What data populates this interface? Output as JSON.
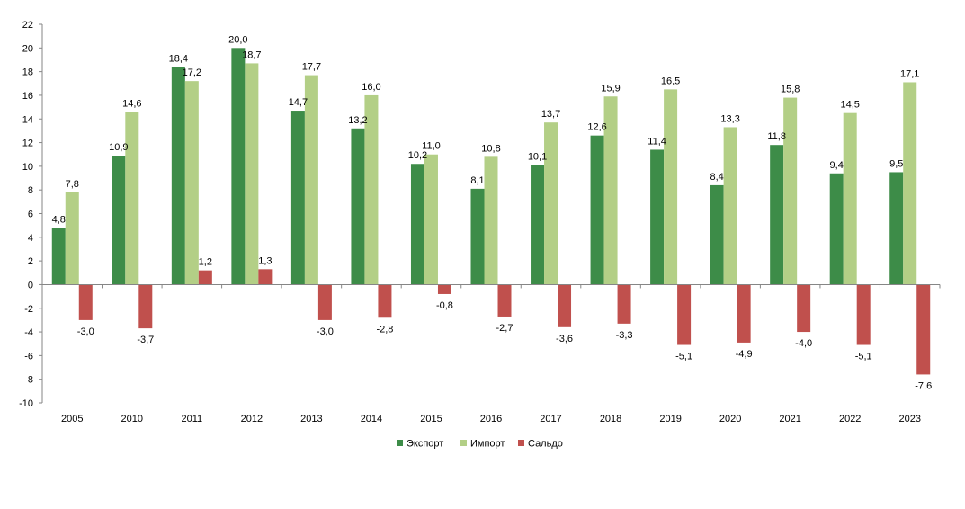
{
  "chart_data": {
    "type": "bar",
    "categories": [
      "2005",
      "2010",
      "2011",
      "2012",
      "2013",
      "2014",
      "2015",
      "2016",
      "2017",
      "2018",
      "2019",
      "2020",
      "2021",
      "2022",
      "2023"
    ],
    "series": [
      {
        "name": "Экспорт",
        "color": "#3d8c48",
        "values": [
          4.8,
          10.9,
          18.4,
          20.0,
          14.7,
          13.2,
          10.2,
          8.1,
          10.1,
          12.6,
          11.4,
          8.4,
          11.8,
          9.4,
          9.5
        ],
        "labels": [
          "4,8",
          "10,9",
          "18,4",
          "20,0",
          "14,7",
          "13,2",
          "10,2",
          "8,1",
          "10,1",
          "12,6",
          "11,4",
          "8,4",
          "11,8",
          "9,4",
          "9,5"
        ]
      },
      {
        "name": "Импорт",
        "color": "#b3cf86",
        "values": [
          7.8,
          14.6,
          17.2,
          18.7,
          17.7,
          16.0,
          11.0,
          10.8,
          13.7,
          15.9,
          16.5,
          13.3,
          15.8,
          14.5,
          17.1
        ],
        "labels": [
          "7,8",
          "14,6",
          "17,2",
          "18,7",
          "17,7",
          "16,0",
          "11,0",
          "10,8",
          "13,7",
          "15,9",
          "16,5",
          "13,3",
          "15,8",
          "14,5",
          "17,1"
        ]
      },
      {
        "name": "Сальдо",
        "color": "#c0504d",
        "values": [
          -3.0,
          -3.7,
          1.2,
          1.3,
          -3.0,
          -2.8,
          -0.8,
          -2.7,
          -3.6,
          -3.3,
          -5.1,
          -4.9,
          -4.0,
          -5.1,
          -7.6
        ],
        "labels": [
          "-3,0",
          "-3,7",
          "1,2",
          "1,3",
          "-3,0",
          "-2,8",
          "-0,8",
          "-2,7",
          "-3,6",
          "-3,3",
          "-5,1",
          "-4,9",
          "-4,0",
          "-5,1",
          "-7,6"
        ]
      }
    ],
    "y_ticks": [
      "-10",
      "-8",
      "-6",
      "-4",
      "-2",
      "0",
      "2",
      "4",
      "6",
      "8",
      "10",
      "12",
      "14",
      "16",
      "18",
      "20",
      "22"
    ],
    "ylim": [
      -10,
      22
    ],
    "grid": false,
    "legend_position": "bottom",
    "title": "",
    "xlabel": "",
    "ylabel": ""
  }
}
